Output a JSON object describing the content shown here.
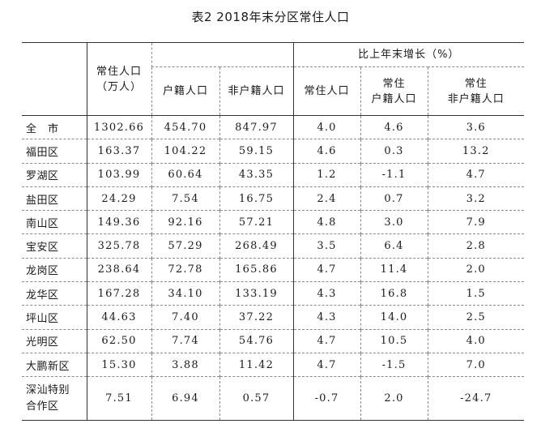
{
  "title": "表2 2018年末分区常住人口",
  "headers": {
    "resident": "常住人口",
    "resident_unit": "（万人）",
    "household": "户籍人口",
    "non_household": "非户籍人口",
    "growth_group": "比上年末增长（%）",
    "growth_resident": "常住人口",
    "growth_household_l1": "常住",
    "growth_household_l2": "户籍人口",
    "growth_non_household_l1": "常住",
    "growth_non_household_l2": "非户籍人口"
  },
  "rows": [
    {
      "district": "全　市",
      "resident": "1302.66",
      "household": "454.70",
      "non_household": "847.97",
      "g_resident": "4.0",
      "g_household": "4.6",
      "g_non_household": "3.6"
    },
    {
      "district": "福田区",
      "resident": "163.37",
      "household": "104.22",
      "non_household": "59.15",
      "g_resident": "4.6",
      "g_household": "0.3",
      "g_non_household": "13.2"
    },
    {
      "district": "罗湖区",
      "resident": "103.99",
      "household": "60.64",
      "non_household": "43.35",
      "g_resident": "1.2",
      "g_household": "-1.1",
      "g_non_household": "4.7"
    },
    {
      "district": "盐田区",
      "resident": "24.29",
      "household": "7.54",
      "non_household": "16.75",
      "g_resident": "2.4",
      "g_household": "0.7",
      "g_non_household": "3.2"
    },
    {
      "district": "南山区",
      "resident": "149.36",
      "household": "92.16",
      "non_household": "57.21",
      "g_resident": "4.8",
      "g_household": "3.0",
      "g_non_household": "7.9"
    },
    {
      "district": "宝安区",
      "resident": "325.78",
      "household": "57.29",
      "non_household": "268.49",
      "g_resident": "3.5",
      "g_household": "6.4",
      "g_non_household": "2.8"
    },
    {
      "district": "龙岗区",
      "resident": "238.64",
      "household": "72.78",
      "non_household": "165.86",
      "g_resident": "4.7",
      "g_household": "11.4",
      "g_non_household": "2.0"
    },
    {
      "district": "龙华区",
      "resident": "167.28",
      "household": "34.10",
      "non_household": "133.19",
      "g_resident": "4.3",
      "g_household": "16.8",
      "g_non_household": "1.5"
    },
    {
      "district": "坪山区",
      "resident": "44.63",
      "household": "7.40",
      "non_household": "37.22",
      "g_resident": "4.3",
      "g_household": "14.0",
      "g_non_household": "2.5"
    },
    {
      "district": "光明区",
      "resident": "62.50",
      "household": "7.74",
      "non_household": "54.76",
      "g_resident": "4.7",
      "g_household": "10.5",
      "g_non_household": "4.0"
    },
    {
      "district": "大鹏新区",
      "resident": "15.30",
      "household": "3.88",
      "non_household": "11.42",
      "g_resident": "4.7",
      "g_household": "-1.5",
      "g_non_household": "7.0"
    },
    {
      "district_l1": "深汕特别",
      "district_l2": "合作区",
      "resident": "7.51",
      "household": "6.94",
      "non_household": "0.57",
      "g_resident": "-0.7",
      "g_household": "2.0",
      "g_non_household": "-24.7"
    }
  ]
}
